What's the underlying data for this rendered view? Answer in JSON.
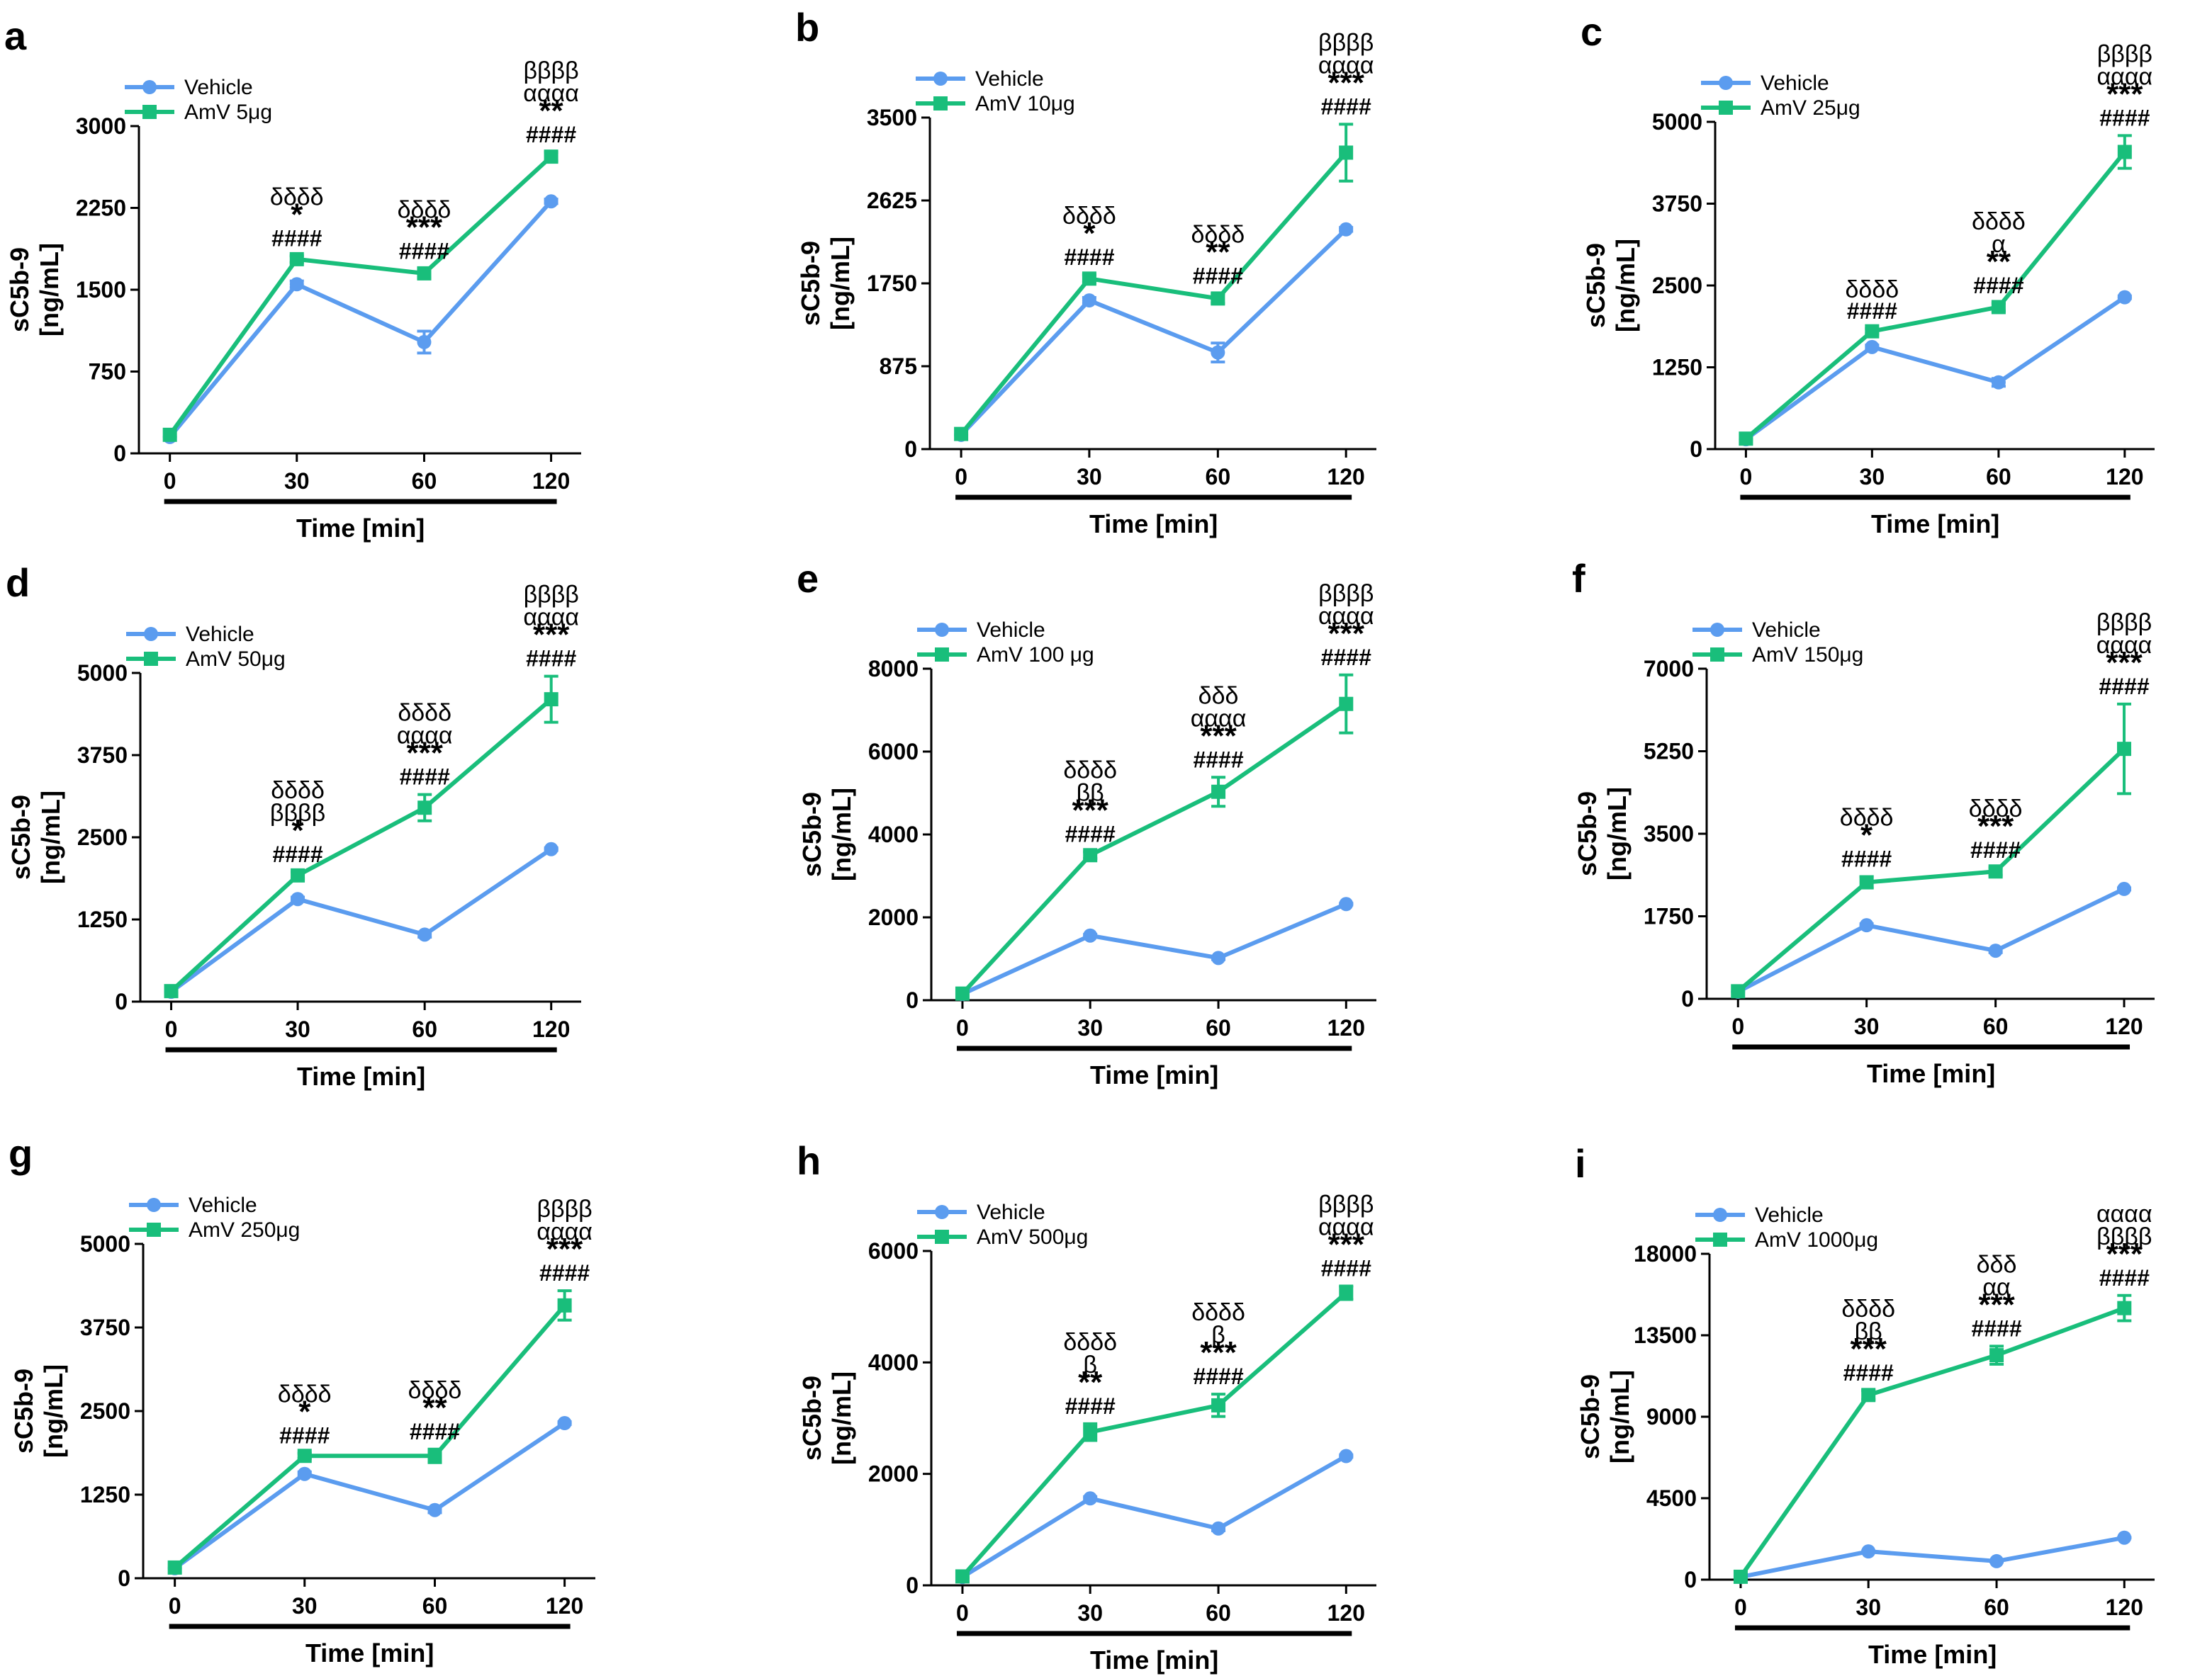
{
  "colors": {
    "vehicle": "#5b9cef",
    "amv": "#19be7b",
    "axis": "#000000"
  },
  "chart_data": [
    {
      "panel": "a",
      "type": "line",
      "x": [
        0,
        30,
        60,
        120
      ],
      "x_tick_labels": [
        "0",
        "30",
        "60",
        "120"
      ],
      "xlabel": "Time [min]",
      "ylabel_line1": "sC5b-9",
      "ylabel_line2": "[ng/mL]",
      "ylim": [
        0,
        3000
      ],
      "y_ticks": [
        0,
        750,
        1500,
        2250,
        3000
      ],
      "y_tick_labels": [
        "0",
        "750",
        "1500",
        "2250",
        "3000"
      ],
      "legend": [
        "Vehicle",
        "AmV 5μg"
      ],
      "series": [
        {
          "name": "Vehicle",
          "values": [
            150,
            1550,
            1020,
            2310
          ],
          "errors": [
            0,
            30,
            100,
            20
          ]
        },
        {
          "name": "AmV 5μg",
          "values": [
            170,
            1780,
            1650,
            2720
          ],
          "errors": [
            0,
            30,
            40,
            40
          ]
        }
      ],
      "annotations": [
        {
          "x": 30,
          "lines": [
            "δδδδ",
            "*",
            "####"
          ]
        },
        {
          "x": 60,
          "lines": [
            "δδδδ",
            "***",
            "####"
          ]
        },
        {
          "x": 120,
          "lines": [
            "ββββ",
            "αααα",
            "**",
            "####"
          ]
        }
      ]
    },
    {
      "panel": "b",
      "type": "line",
      "x": [
        0,
        30,
        60,
        120
      ],
      "x_tick_labels": [
        "0",
        "30",
        "60",
        "120"
      ],
      "xlabel": "Time [min]",
      "ylabel_line1": "sC5b-9",
      "ylabel_line2": "[ng/mL]",
      "ylim": [
        0,
        3500
      ],
      "y_ticks": [
        0,
        875,
        1750,
        2625,
        3500
      ],
      "y_tick_labels": [
        "0",
        "875",
        "1750",
        "2625",
        "3500"
      ],
      "legend": [
        "Vehicle",
        "AmV 10μg"
      ],
      "series": [
        {
          "name": "Vehicle",
          "values": [
            150,
            1570,
            1020,
            2320
          ],
          "errors": [
            0,
            30,
            100,
            20
          ]
        },
        {
          "name": "AmV 10μg",
          "values": [
            160,
            1800,
            1590,
            3130
          ],
          "errors": [
            0,
            40,
            50,
            300
          ]
        }
      ],
      "annotations": [
        {
          "x": 30,
          "lines": [
            "δδδδ",
            "*",
            "####"
          ]
        },
        {
          "x": 60,
          "lines": [
            "δδδδ",
            "**",
            "####"
          ]
        },
        {
          "x": 120,
          "lines": [
            "ββββ",
            "αααα",
            "***",
            "####"
          ]
        }
      ]
    },
    {
      "panel": "c",
      "type": "line",
      "x": [
        0,
        30,
        60,
        120
      ],
      "x_tick_labels": [
        "0",
        "30",
        "60",
        "120"
      ],
      "xlabel": "Time [min]",
      "ylabel_line1": "sC5b-9",
      "ylabel_line2": "[ng/mL]",
      "ylim": [
        0,
        5000
      ],
      "y_ticks": [
        0,
        1250,
        2500,
        3750,
        5000
      ],
      "y_tick_labels": [
        "0",
        "1250",
        "2500",
        "3750",
        "5000"
      ],
      "legend": [
        "Vehicle",
        "AmV 25μg"
      ],
      "series": [
        {
          "name": "Vehicle",
          "values": [
            150,
            1560,
            1020,
            2320
          ],
          "errors": [
            0,
            30,
            60,
            20
          ]
        },
        {
          "name": "AmV 25μg",
          "values": [
            160,
            1800,
            2170,
            4540
          ],
          "errors": [
            0,
            40,
            60,
            250
          ]
        }
      ],
      "annotations": [
        {
          "x": 30,
          "lines": [
            "δδδδ",
            "####"
          ]
        },
        {
          "x": 60,
          "lines": [
            "δδδδ",
            "α",
            "**",
            "####"
          ]
        },
        {
          "x": 120,
          "lines": [
            "ββββ",
            "αααα",
            "***",
            "####"
          ]
        }
      ]
    },
    {
      "panel": "d",
      "type": "line",
      "x": [
        0,
        30,
        60,
        120
      ],
      "x_tick_labels": [
        "0",
        "30",
        "60",
        "120"
      ],
      "xlabel": "Time [min]",
      "ylabel_line1": "sC5b-9",
      "ylabel_line2": "[ng/mL]",
      "ylim": [
        0,
        5000
      ],
      "y_ticks": [
        0,
        1250,
        2500,
        3750,
        5000
      ],
      "y_tick_labels": [
        "0",
        "1250",
        "2500",
        "3750",
        "5000"
      ],
      "legend": [
        "Vehicle",
        "AmV 50μg"
      ],
      "series": [
        {
          "name": "Vehicle",
          "values": [
            150,
            1560,
            1020,
            2320
          ],
          "errors": [
            0,
            30,
            40,
            20
          ]
        },
        {
          "name": "AmV 50μg",
          "values": [
            160,
            1920,
            2950,
            4600
          ],
          "errors": [
            0,
            50,
            200,
            350
          ]
        }
      ],
      "annotations": [
        {
          "x": 30,
          "lines": [
            "δδδδ",
            "ββββ",
            "*",
            "####"
          ]
        },
        {
          "x": 60,
          "lines": [
            "δδδδ",
            "αααα",
            "***",
            "####"
          ]
        },
        {
          "x": 120,
          "lines": [
            "ββββ",
            "αααα",
            "***",
            "####"
          ]
        }
      ]
    },
    {
      "panel": "e",
      "type": "line",
      "x": [
        0,
        30,
        60,
        120
      ],
      "x_tick_labels": [
        "0",
        "30",
        "60",
        "120"
      ],
      "xlabel": "Time [min]",
      "ylabel_line1": "sC5b-9",
      "ylabel_line2": "[ng/mL]",
      "ylim": [
        0,
        8000
      ],
      "y_ticks": [
        0,
        2000,
        4000,
        6000,
        8000
      ],
      "y_tick_labels": [
        "0",
        "2000",
        "4000",
        "6000",
        "8000"
      ],
      "legend": [
        "Vehicle",
        "AmV 100 μg"
      ],
      "series": [
        {
          "name": "Vehicle",
          "values": [
            150,
            1560,
            1020,
            2320
          ],
          "errors": [
            0,
            30,
            40,
            20
          ]
        },
        {
          "name": "AmV 100 μg",
          "values": [
            160,
            3500,
            5030,
            7150
          ],
          "errors": [
            0,
            80,
            350,
            700
          ]
        }
      ],
      "annotations": [
        {
          "x": 30,
          "lines": [
            "δδδδ",
            "ββ",
            "***",
            "####"
          ]
        },
        {
          "x": 60,
          "lines": [
            "δδδ",
            "αααα",
            "***",
            "####"
          ]
        },
        {
          "x": 120,
          "lines": [
            "ββββ",
            "αααα",
            "***",
            "####"
          ]
        }
      ]
    },
    {
      "panel": "f",
      "type": "line",
      "x": [
        0,
        30,
        60,
        120
      ],
      "x_tick_labels": [
        "0",
        "30",
        "60",
        "120"
      ],
      "xlabel": "Time [min]",
      "ylabel_line1": "sC5b-9",
      "ylabel_line2": "[ng/mL]",
      "ylim": [
        0,
        7000
      ],
      "y_ticks": [
        0,
        1750,
        3500,
        5250,
        7000
      ],
      "y_tick_labels": [
        "0",
        "1750",
        "3500",
        "5250",
        "7000"
      ],
      "legend": [
        "Vehicle",
        "AmV 150μg"
      ],
      "series": [
        {
          "name": "Vehicle",
          "values": [
            150,
            1560,
            1020,
            2330
          ],
          "errors": [
            0,
            30,
            40,
            20
          ]
        },
        {
          "name": "AmV 150μg",
          "values": [
            160,
            2470,
            2700,
            5300
          ],
          "errors": [
            0,
            120,
            80,
            950
          ]
        }
      ],
      "annotations": [
        {
          "x": 30,
          "lines": [
            "δδδδ",
            "*",
            "####"
          ]
        },
        {
          "x": 60,
          "lines": [
            "δδδδ",
            "***",
            "####"
          ]
        },
        {
          "x": 120,
          "lines": [
            "ββββ",
            "αααα",
            "***",
            "####"
          ]
        }
      ]
    },
    {
      "panel": "g",
      "type": "line",
      "x": [
        0,
        30,
        60,
        120
      ],
      "x_tick_labels": [
        "0",
        "30",
        "60",
        "120"
      ],
      "xlabel": "Time [min]",
      "ylabel_line1": "sC5b-9",
      "ylabel_line2": "[ng/mL]",
      "ylim": [
        0,
        5000
      ],
      "y_ticks": [
        0,
        1250,
        2500,
        3750,
        5000
      ],
      "y_tick_labels": [
        "0",
        "1250",
        "2500",
        "3750",
        "5000"
      ],
      "legend": [
        "Vehicle",
        "AmV 250μg"
      ],
      "series": [
        {
          "name": "Vehicle",
          "values": [
            150,
            1560,
            1020,
            2320
          ],
          "errors": [
            0,
            30,
            40,
            20
          ]
        },
        {
          "name": "AmV 250μg",
          "values": [
            160,
            1830,
            1830,
            4080
          ],
          "errors": [
            0,
            40,
            100,
            220
          ]
        }
      ],
      "annotations": [
        {
          "x": 30,
          "lines": [
            "δδδδ",
            "*",
            "####"
          ]
        },
        {
          "x": 60,
          "lines": [
            "δδδδ",
            "**",
            "####"
          ]
        },
        {
          "x": 120,
          "lines": [
            "ββββ",
            "αααα",
            "***",
            "####"
          ]
        }
      ]
    },
    {
      "panel": "h",
      "type": "line",
      "x": [
        0,
        30,
        60,
        120
      ],
      "x_tick_labels": [
        "0",
        "30",
        "60",
        "120"
      ],
      "xlabel": "Time [min]",
      "ylabel_line1": "sC5b-9",
      "ylabel_line2": "[ng/mL]",
      "ylim": [
        0,
        6000
      ],
      "y_ticks": [
        0,
        2000,
        4000,
        6000
      ],
      "y_tick_labels": [
        "0",
        "2000",
        "4000",
        "6000"
      ],
      "legend": [
        "Vehicle",
        "AmV 500μg"
      ],
      "series": [
        {
          "name": "Vehicle",
          "values": [
            150,
            1560,
            1020,
            2320
          ],
          "errors": [
            0,
            30,
            40,
            20
          ]
        },
        {
          "name": "AmV 500μg",
          "values": [
            160,
            2750,
            3230,
            5250
          ],
          "errors": [
            0,
            150,
            200,
            120
          ]
        }
      ],
      "annotations": [
        {
          "x": 30,
          "lines": [
            "δδδδ",
            "β",
            "**",
            "####"
          ]
        },
        {
          "x": 60,
          "lines": [
            "δδδδ",
            "β",
            "***",
            "####"
          ]
        },
        {
          "x": 120,
          "lines": [
            "ββββ",
            "αααα",
            "***",
            "####"
          ]
        }
      ]
    },
    {
      "panel": "i",
      "type": "line",
      "x": [
        0,
        30,
        60,
        120
      ],
      "x_tick_labels": [
        "0",
        "30",
        "60",
        "120"
      ],
      "xlabel": "Time [min]",
      "ylabel_line1": "sC5b-9",
      "ylabel_line2": "[ng/mL]",
      "ylim": [
        0,
        18000
      ],
      "y_ticks": [
        0,
        4500,
        9000,
        13500,
        18000
      ],
      "y_tick_labels": [
        "0",
        "4500",
        "9000",
        "13500",
        "18000"
      ],
      "legend": [
        "Vehicle",
        "AmV 1000μg"
      ],
      "series": [
        {
          "name": "Vehicle",
          "values": [
            150,
            1560,
            1020,
            2320
          ],
          "errors": [
            0,
            30,
            40,
            20
          ]
        },
        {
          "name": "AmV 1000μg",
          "values": [
            160,
            10200,
            12400,
            15000
          ],
          "errors": [
            0,
            250,
            500,
            700
          ]
        }
      ],
      "annotations": [
        {
          "x": 30,
          "lines": [
            "δδδδ",
            "ββ",
            "***",
            "####"
          ]
        },
        {
          "x": 60,
          "lines": [
            "δδδ",
            "αα",
            "***",
            "####"
          ]
        },
        {
          "x": 120,
          "lines": [
            "αααα",
            "ββββ",
            "***",
            "####"
          ]
        }
      ]
    }
  ]
}
